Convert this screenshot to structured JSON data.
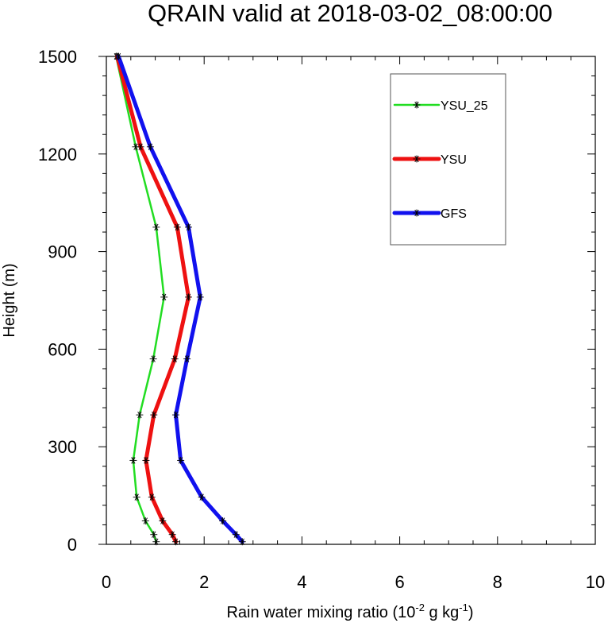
{
  "chart_data": {
    "type": "line",
    "title": "QRAIN valid at 2018-03-02_08:00:00",
    "xlabel": {
      "prefix": "Rain water mixing ratio (10",
      "sup1": "-2",
      "middle": " g kg",
      "sup2": "-1",
      "suffix": ")"
    },
    "ylabel": "Height (m)",
    "xlim": [
      0,
      10
    ],
    "ylim": [
      0,
      1500
    ],
    "x_ticks": [
      0,
      2,
      4,
      6,
      8,
      10
    ],
    "x_tick_labels": [
      "0",
      "2",
      "4",
      "6",
      "8",
      "10"
    ],
    "y_ticks": [
      0,
      300,
      600,
      900,
      1200,
      1500
    ],
    "y_tick_labels": [
      "0",
      "300",
      "600",
      "900",
      "1200",
      "1500"
    ],
    "x_minor_step": 0.5,
    "y_minor_step": 60,
    "grid": false,
    "legend_placement": "top-right",
    "marker": "asterisk",
    "series": [
      {
        "name": "YSU_25",
        "color": "#22dd22",
        "width": "thin",
        "points": [
          {
            "x": 1.02,
            "y": 8
          },
          {
            "x": 0.97,
            "y": 30
          },
          {
            "x": 0.8,
            "y": 72
          },
          {
            "x": 0.62,
            "y": 145
          },
          {
            "x": 0.55,
            "y": 258
          },
          {
            "x": 0.68,
            "y": 398
          },
          {
            "x": 0.96,
            "y": 570
          },
          {
            "x": 1.18,
            "y": 760
          },
          {
            "x": 1.02,
            "y": 975
          },
          {
            "x": 0.6,
            "y": 1222
          },
          {
            "x": 0.2,
            "y": 1500
          }
        ]
      },
      {
        "name": "YSU",
        "color": "#ee1111",
        "width": "thick",
        "points": [
          {
            "x": 1.42,
            "y": 8
          },
          {
            "x": 1.35,
            "y": 30
          },
          {
            "x": 1.15,
            "y": 72
          },
          {
            "x": 0.93,
            "y": 145
          },
          {
            "x": 0.81,
            "y": 258
          },
          {
            "x": 0.97,
            "y": 398
          },
          {
            "x": 1.4,
            "y": 570
          },
          {
            "x": 1.68,
            "y": 760
          },
          {
            "x": 1.45,
            "y": 975
          },
          {
            "x": 0.7,
            "y": 1222
          },
          {
            "x": 0.22,
            "y": 1500
          }
        ]
      },
      {
        "name": "GFS",
        "color": "#1111ee",
        "width": "thick",
        "points": [
          {
            "x": 2.78,
            "y": 8
          },
          {
            "x": 2.65,
            "y": 30
          },
          {
            "x": 2.38,
            "y": 72
          },
          {
            "x": 1.95,
            "y": 145
          },
          {
            "x": 1.52,
            "y": 258
          },
          {
            "x": 1.42,
            "y": 398
          },
          {
            "x": 1.65,
            "y": 570
          },
          {
            "x": 1.92,
            "y": 760
          },
          {
            "x": 1.68,
            "y": 975
          },
          {
            "x": 0.9,
            "y": 1222
          },
          {
            "x": 0.25,
            "y": 1500
          }
        ]
      }
    ]
  }
}
